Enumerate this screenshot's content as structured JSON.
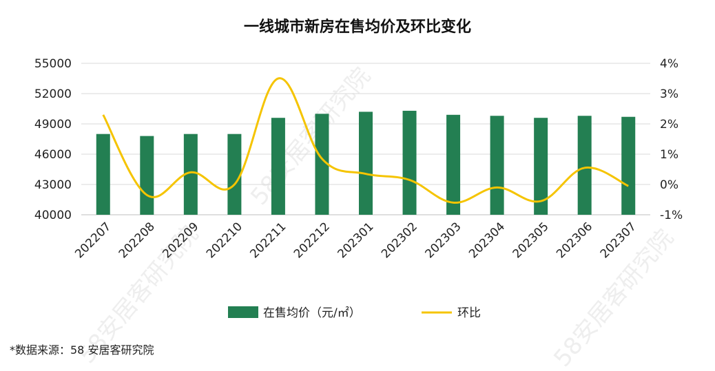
{
  "chart_data": {
    "type": "bar",
    "title": "一线城市新房在售均价及环比变化",
    "categories": [
      "202207",
      "202208",
      "202209",
      "202210",
      "202211",
      "202212",
      "202301",
      "202302",
      "202303",
      "202304",
      "202305",
      "202306",
      "202307"
    ],
    "series": [
      {
        "name": "在售均价（元/㎡）",
        "type": "bar",
        "axis": "left",
        "color": "#237f52",
        "values": [
          48000,
          47800,
          48000,
          48000,
          49600,
          50000,
          50200,
          50300,
          49900,
          49800,
          49600,
          49800,
          49700
        ]
      },
      {
        "name": "环比",
        "type": "line",
        "axis": "right",
        "color": "#f5c400",
        "values": [
          2.3,
          -0.35,
          0.4,
          0.0,
          3.5,
          0.85,
          0.35,
          0.15,
          -0.6,
          -0.1,
          -0.55,
          0.55,
          -0.05
        ]
      }
    ],
    "y_left": {
      "ylim": [
        40000,
        55000
      ],
      "ticks": [
        "40000",
        "43000",
        "46000",
        "49000",
        "52000",
        "55000"
      ]
    },
    "y_right": {
      "ylim": [
        -1,
        4
      ],
      "ticks": [
        "-1%",
        "0%",
        "1%",
        "2%",
        "3%",
        "4%"
      ]
    },
    "grid": true,
    "legend_position": "bottom"
  },
  "source": "*数据来源：58 安居客研究院",
  "watermark": "58安居客研究院"
}
